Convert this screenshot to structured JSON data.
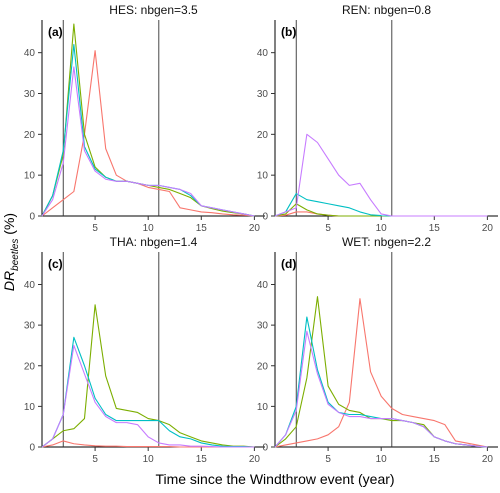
{
  "figure": {
    "xlabel": "Time since the Windthrow event (year)",
    "ylabel_main": "DR",
    "ylabel_sub": "beetles",
    "ylabel_unit": " (%)"
  },
  "series_colors": {
    "red": "#F8766D",
    "green": "#7CAE00",
    "cyan": "#00BFC4",
    "purple": "#C77CFF"
  },
  "chart_data": [
    {
      "type": "line",
      "title": "HES: nbgen=3.5",
      "panel_label": "(a)",
      "xlim": [
        0,
        21
      ],
      "ylim": [
        0,
        48
      ],
      "xticks": [
        5,
        10,
        15,
        20
      ],
      "yticks": [
        0,
        10,
        20,
        30,
        40
      ],
      "vlines": [
        2,
        11
      ],
      "grid": false,
      "series": [
        {
          "color": "#F8766D",
          "x": [
            0,
            1,
            2,
            3,
            4,
            5,
            6,
            7,
            8,
            9,
            10,
            11,
            12,
            13,
            14,
            15,
            16,
            17,
            18,
            19,
            20
          ],
          "y": [
            0,
            2,
            4,
            6,
            20,
            40.5,
            16.5,
            10,
            8.5,
            8,
            7,
            6.5,
            6,
            2,
            1.5,
            1,
            0.8,
            0.5,
            0.3,
            0.2,
            0
          ]
        },
        {
          "color": "#7CAE00",
          "x": [
            0,
            1,
            2,
            3,
            4,
            5,
            6,
            7,
            8,
            9,
            10,
            11,
            12,
            13,
            14,
            15,
            16,
            17,
            18,
            19,
            20
          ],
          "y": [
            0,
            5,
            15,
            47,
            20,
            12,
            9.5,
            8.5,
            8.5,
            8,
            7.5,
            7,
            6.5,
            5.5,
            4.5,
            2.5,
            1.8,
            1.2,
            0.8,
            0.5,
            0
          ]
        },
        {
          "color": "#00BFC4",
          "x": [
            0,
            1,
            2,
            3,
            4,
            5,
            6,
            7,
            8,
            9,
            10,
            11,
            12,
            13,
            14,
            15,
            16,
            17,
            18,
            19,
            20
          ],
          "y": [
            0,
            5,
            16,
            42,
            17,
            11.5,
            9.5,
            8.5,
            8.5,
            8,
            7.5,
            7.5,
            7,
            6.5,
            5,
            2.5,
            2,
            1.5,
            1,
            0.5,
            0
          ]
        },
        {
          "color": "#C77CFF",
          "x": [
            0,
            1,
            2,
            3,
            4,
            5,
            6,
            7,
            8,
            9,
            10,
            11,
            12,
            13,
            14,
            15,
            16,
            17,
            18,
            19,
            20
          ],
          "y": [
            0,
            4,
            13,
            36.5,
            16,
            11,
            9,
            8.5,
            8.5,
            8,
            7.5,
            7.5,
            7,
            6.5,
            5.5,
            2.5,
            2,
            1.5,
            1,
            0.5,
            0
          ]
        }
      ]
    },
    {
      "type": "line",
      "title": "REN: nbgen=0.8",
      "panel_label": "(b)",
      "xlim": [
        0,
        21
      ],
      "ylim": [
        0,
        48
      ],
      "xticks": [
        5,
        10,
        15,
        20
      ],
      "yticks": [
        0,
        10,
        20,
        30,
        40
      ],
      "vlines": [
        2,
        11
      ],
      "grid": false,
      "series": [
        {
          "color": "#F8766D",
          "x": [
            0,
            1,
            2,
            3,
            4,
            5,
            6,
            7,
            8,
            9,
            10,
            11,
            12,
            13,
            14,
            15,
            16,
            17,
            18,
            19,
            20
          ],
          "y": [
            0,
            0.2,
            1,
            1,
            0.5,
            0.2,
            0,
            0,
            0,
            0,
            0,
            0,
            0,
            0,
            0,
            0,
            0,
            0,
            0,
            0,
            0
          ]
        },
        {
          "color": "#7CAE00",
          "x": [
            0,
            1,
            2,
            3,
            4,
            5,
            6,
            7,
            8,
            9,
            10,
            11,
            12,
            13,
            14,
            15,
            16,
            17,
            18,
            19,
            20
          ],
          "y": [
            0,
            0.5,
            3,
            1.5,
            0.5,
            0.2,
            0,
            0,
            0,
            0,
            0,
            0,
            0,
            0,
            0,
            0,
            0,
            0,
            0,
            0,
            0
          ]
        },
        {
          "color": "#00BFC4",
          "x": [
            0,
            1,
            2,
            3,
            4,
            5,
            6,
            7,
            8,
            9,
            10,
            11,
            12,
            13,
            14,
            15,
            16,
            17,
            18,
            19,
            20
          ],
          "y": [
            0,
            1,
            5.5,
            4,
            3.5,
            3,
            2.5,
            2,
            1,
            0.3,
            0.1,
            0,
            0,
            0,
            0,
            0,
            0,
            0,
            0,
            0,
            0
          ]
        },
        {
          "color": "#C77CFF",
          "x": [
            0,
            1,
            2,
            3,
            4,
            5,
            6,
            7,
            8,
            9,
            10,
            11,
            12,
            13,
            14,
            15,
            16,
            17,
            18,
            19,
            20
          ],
          "y": [
            0,
            1,
            2,
            20,
            18,
            14,
            10,
            7.5,
            8,
            4,
            0.5,
            0,
            0,
            0,
            0,
            0,
            0,
            0,
            0,
            0,
            0
          ]
        }
      ]
    },
    {
      "type": "line",
      "title": "THA: nbgen=1.4",
      "panel_label": "(c)",
      "xlim": [
        0,
        21
      ],
      "ylim": [
        0,
        48
      ],
      "xticks": [
        5,
        10,
        15,
        20
      ],
      "yticks": [
        0,
        10,
        20,
        30,
        40
      ],
      "vlines": [
        2,
        11
      ],
      "grid": false,
      "series": [
        {
          "color": "#F8766D",
          "x": [
            0,
            1,
            2,
            3,
            4,
            5,
            6,
            7,
            8,
            9,
            10,
            11,
            12,
            13,
            14,
            15,
            16,
            17,
            18,
            19,
            20
          ],
          "y": [
            0,
            0.5,
            1.5,
            0.8,
            0.5,
            0.3,
            0.2,
            0.2,
            0.1,
            0.1,
            0.1,
            0.1,
            0.1,
            0,
            0,
            0,
            0,
            0,
            0,
            0,
            0
          ]
        },
        {
          "color": "#7CAE00",
          "x": [
            0,
            1,
            2,
            3,
            4,
            5,
            6,
            7,
            8,
            9,
            10,
            11,
            12,
            13,
            14,
            15,
            16,
            17,
            18,
            19,
            20
          ],
          "y": [
            0,
            2,
            4,
            4.5,
            7,
            35,
            17.5,
            9.5,
            9,
            8.5,
            7,
            6.5,
            5.5,
            3.5,
            2.5,
            1.5,
            1,
            0.5,
            0.2,
            0.2,
            0
          ]
        },
        {
          "color": "#00BFC4",
          "x": [
            0,
            1,
            2,
            3,
            4,
            5,
            6,
            7,
            8,
            9,
            10,
            11,
            12,
            13,
            14,
            15,
            16,
            17,
            18,
            19,
            20
          ],
          "y": [
            0,
            2,
            8,
            27,
            20,
            12,
            8,
            6.5,
            6.5,
            6.5,
            6.5,
            6.5,
            4,
            2.5,
            2,
            1,
            0.5,
            0.2,
            0.1,
            0.1,
            0
          ]
        },
        {
          "color": "#C77CFF",
          "x": [
            0,
            1,
            2,
            3,
            4,
            5,
            6,
            7,
            8,
            9,
            10,
            11,
            12,
            13,
            14,
            15,
            16,
            17,
            18,
            19,
            20
          ],
          "y": [
            0,
            2,
            8,
            25,
            18,
            11,
            7.5,
            6,
            6,
            5.5,
            2.5,
            1,
            0.5,
            0.5,
            0.2,
            0.2,
            0.1,
            0,
            0,
            0,
            0
          ]
        }
      ]
    },
    {
      "type": "line",
      "title": "WET: nbgen=2.2",
      "panel_label": "(d)",
      "xlim": [
        0,
        21
      ],
      "ylim": [
        0,
        48
      ],
      "xticks": [
        5,
        10,
        15,
        20
      ],
      "yticks": [
        0,
        10,
        20,
        30,
        40
      ],
      "vlines": [
        2,
        11
      ],
      "grid": false,
      "series": [
        {
          "color": "#F8766D",
          "x": [
            0,
            1,
            2,
            3,
            4,
            5,
            6,
            7,
            8,
            9,
            10,
            11,
            12,
            13,
            14,
            15,
            16,
            17,
            18,
            19,
            20
          ],
          "y": [
            0,
            0.5,
            1,
            1.5,
            2,
            3,
            5,
            11,
            36.5,
            18.5,
            12.5,
            9.5,
            8,
            7.5,
            7,
            6.5,
            5.5,
            1.5,
            1,
            0.5,
            0
          ]
        },
        {
          "color": "#7CAE00",
          "x": [
            0,
            1,
            2,
            3,
            4,
            5,
            6,
            7,
            8,
            9,
            10,
            11,
            12,
            13,
            14,
            15,
            16,
            17,
            18,
            19,
            20
          ],
          "y": [
            0,
            2,
            5,
            17,
            37,
            15,
            10.5,
            9,
            8.5,
            7,
            7,
            6.5,
            6.5,
            6,
            5.5,
            2.5,
            1.5,
            0.8,
            0.5,
            0.2,
            0
          ]
        },
        {
          "color": "#00BFC4",
          "x": [
            0,
            1,
            2,
            3,
            4,
            5,
            6,
            7,
            8,
            9,
            10,
            11,
            12,
            13,
            14,
            15,
            16,
            17,
            18,
            19,
            20
          ],
          "y": [
            0,
            3,
            10,
            32,
            19,
            11,
            8.5,
            8,
            8,
            7.5,
            7,
            7,
            6.5,
            6,
            5,
            2.5,
            1.5,
            0.8,
            0.5,
            0.2,
            0
          ]
        },
        {
          "color": "#C77CFF",
          "x": [
            0,
            1,
            2,
            3,
            4,
            5,
            6,
            7,
            8,
            9,
            10,
            11,
            12,
            13,
            14,
            15,
            16,
            17,
            18,
            19,
            20
          ],
          "y": [
            0,
            3,
            9,
            28.5,
            18,
            10.5,
            8.5,
            7.5,
            7.5,
            7,
            7,
            7,
            6.5,
            6,
            5,
            2.5,
            1.5,
            0.8,
            0.5,
            0.2,
            0
          ]
        }
      ]
    }
  ]
}
